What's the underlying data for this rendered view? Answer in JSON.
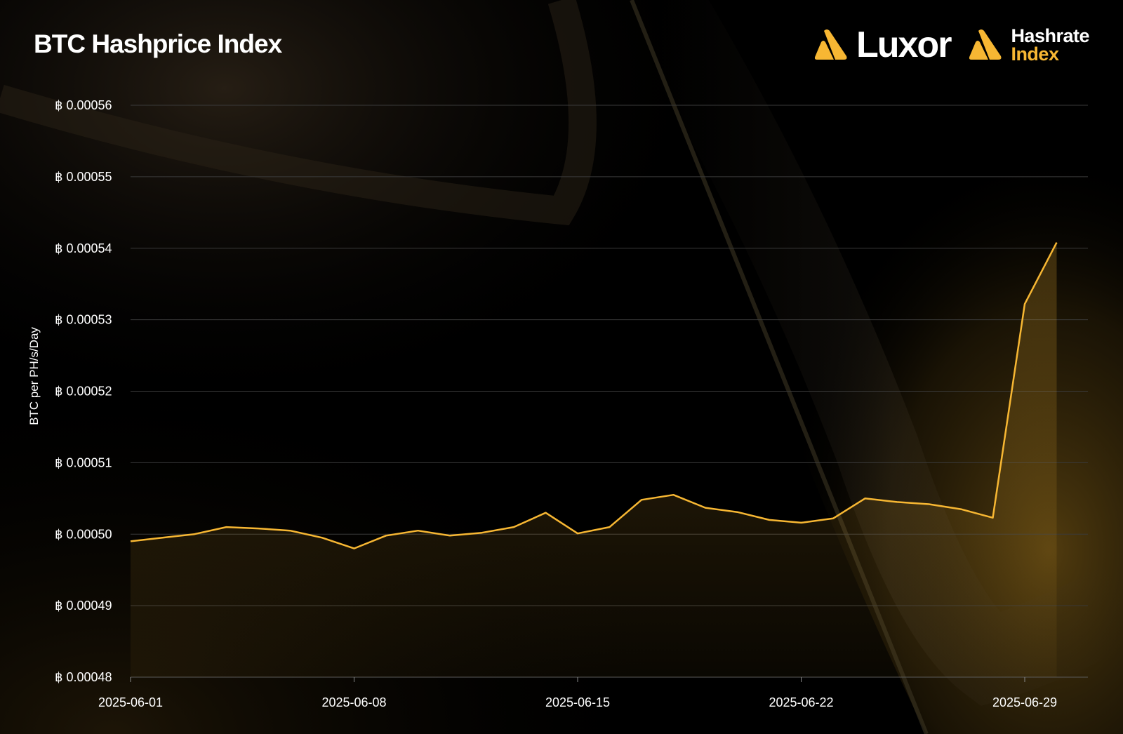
{
  "header": {
    "title": "BTC Hashprice Index"
  },
  "logos": {
    "luxor_name": "Luxor",
    "hri_line1": "Hashrate",
    "hri_line2": "Index",
    "accent_color": "#f7b733"
  },
  "chart_data": {
    "type": "area",
    "title": "BTC Hashprice Index",
    "ylabel": "BTC per PH/s/Day",
    "xlabel": "",
    "ylim": [
      0.00048,
      0.00056
    ],
    "y_ticks": [
      0.00048,
      0.00049,
      0.0005,
      0.00051,
      0.00052,
      0.00053,
      0.00054,
      0.00055,
      0.00056
    ],
    "y_tick_labels": [
      "฿ 0.00048",
      "฿ 0.00049",
      "฿ 0.00050",
      "฿ 0.00051",
      "฿ 0.00052",
      "฿ 0.00053",
      "฿ 0.00054",
      "฿ 0.00055",
      "฿ 0.00056"
    ],
    "x_tick_labels": [
      "2025-06-01",
      "2025-06-08",
      "2025-06-15",
      "2025-06-22",
      "2025-06-29"
    ],
    "xlim": [
      "2025-06-01",
      "2025-06-30"
    ],
    "grid": true,
    "line_color": "#f7b733",
    "series": [
      {
        "x": [
          "2025-06-01",
          "2025-06-02",
          "2025-06-03",
          "2025-06-04",
          "2025-06-05",
          "2025-06-06",
          "2025-06-07",
          "2025-06-08",
          "2025-06-09",
          "2025-06-10",
          "2025-06-11",
          "2025-06-12",
          "2025-06-13",
          "2025-06-14",
          "2025-06-15",
          "2025-06-16",
          "2025-06-17",
          "2025-06-18",
          "2025-06-19",
          "2025-06-20",
          "2025-06-21",
          "2025-06-22",
          "2025-06-23",
          "2025-06-24",
          "2025-06-25",
          "2025-06-26",
          "2025-06-27",
          "2025-06-28",
          "2025-06-29",
          "2025-06-30"
        ],
        "values": [
          0.000499,
          0.0004995,
          0.0005,
          0.000501,
          0.0005008,
          0.0005005,
          0.0004995,
          0.000498,
          0.0004998,
          0.0005005,
          0.0004998,
          0.0005002,
          0.000501,
          0.000503,
          0.0005001,
          0.000501,
          0.0005048,
          0.0005055,
          0.0005037,
          0.0005031,
          0.000502,
          0.0005016,
          0.0005022,
          0.000505,
          0.0005045,
          0.0005042,
          0.0005035,
          0.0005023,
          0.0005322,
          0.0005408
        ]
      }
    ]
  }
}
